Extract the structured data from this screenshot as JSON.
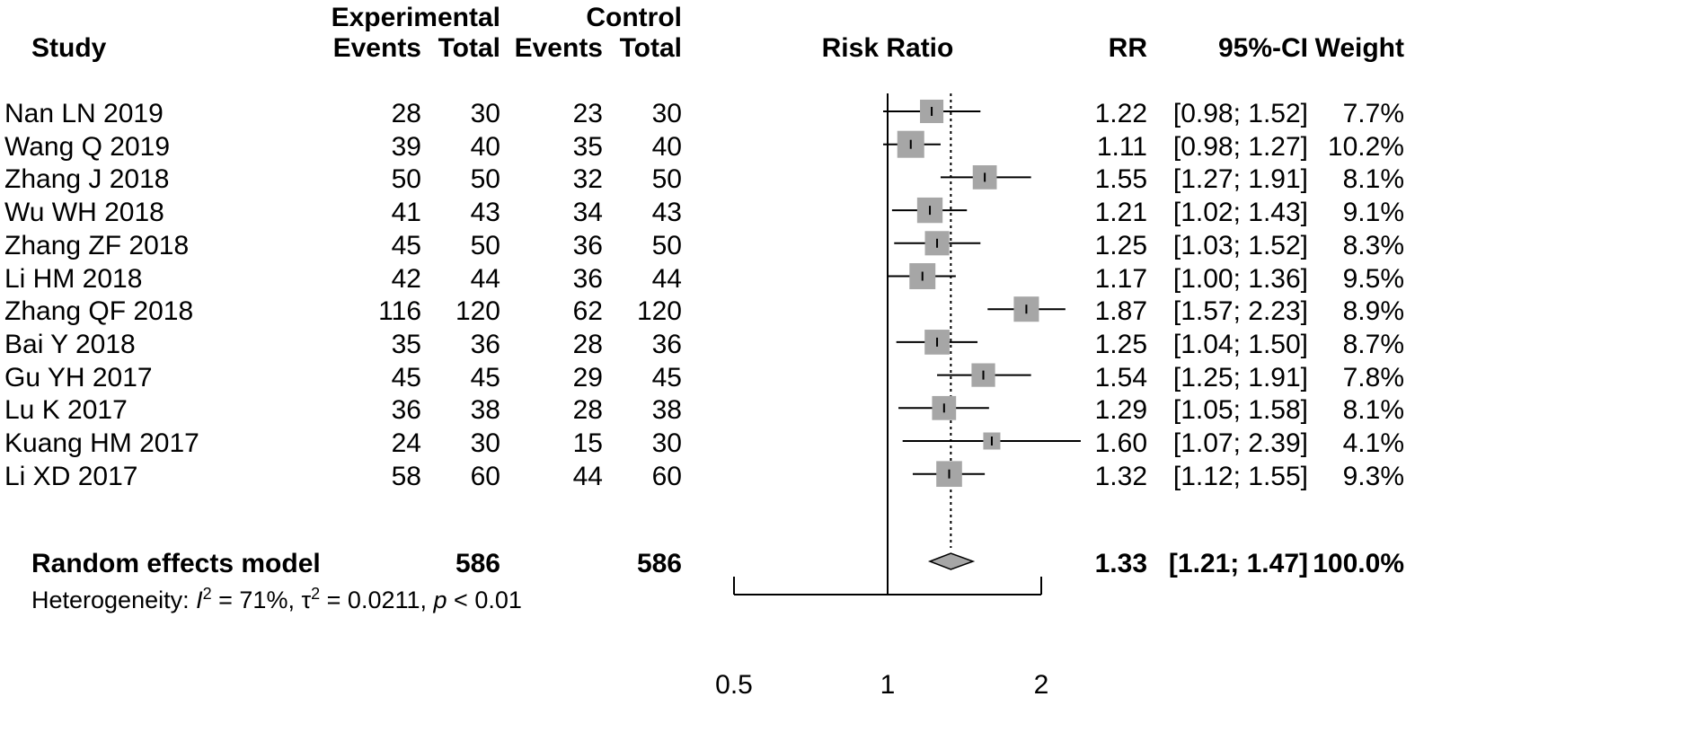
{
  "headers": {
    "study": "Study",
    "experimental": "Experimental",
    "control": "Control",
    "events": "Events",
    "total": "Total",
    "risk_ratio": "Risk Ratio",
    "rr": "RR",
    "ci": "95%-CI",
    "weight": "Weight"
  },
  "studies": [
    {
      "name": "Nan LN 2019",
      "exp_events": "28",
      "exp_total": "30",
      "ctl_events": "23",
      "ctl_total": "30",
      "rr": "1.22",
      "ci": "[0.98; 1.52]",
      "weight": "7.7%"
    },
    {
      "name": "Wang Q 2019",
      "exp_events": "39",
      "exp_total": "40",
      "ctl_events": "35",
      "ctl_total": "40",
      "rr": "1.11",
      "ci": "[0.98; 1.27]",
      "weight": "10.2%"
    },
    {
      "name": "Zhang J 2018",
      "exp_events": "50",
      "exp_total": "50",
      "ctl_events": "32",
      "ctl_total": "50",
      "rr": "1.55",
      "ci": "[1.27; 1.91]",
      "weight": "8.1%"
    },
    {
      "name": "Wu WH 2018",
      "exp_events": "41",
      "exp_total": "43",
      "ctl_events": "34",
      "ctl_total": "43",
      "rr": "1.21",
      "ci": "[1.02; 1.43]",
      "weight": "9.1%"
    },
    {
      "name": "Zhang ZF 2018",
      "exp_events": "45",
      "exp_total": "50",
      "ctl_events": "36",
      "ctl_total": "50",
      "rr": "1.25",
      "ci": "[1.03; 1.52]",
      "weight": "8.3%"
    },
    {
      "name": "Li HM 2018",
      "exp_events": "42",
      "exp_total": "44",
      "ctl_events": "36",
      "ctl_total": "44",
      "rr": "1.17",
      "ci": "[1.00; 1.36]",
      "weight": "9.5%"
    },
    {
      "name": "Zhang QF 2018",
      "exp_events": "116",
      "exp_total": "120",
      "ctl_events": "62",
      "ctl_total": "120",
      "rr": "1.87",
      "ci": "[1.57; 2.23]",
      "weight": "8.9%"
    },
    {
      "name": "Bai Y 2018",
      "exp_events": "35",
      "exp_total": "36",
      "ctl_events": "28",
      "ctl_total": "36",
      "rr": "1.25",
      "ci": "[1.04; 1.50]",
      "weight": "8.7%"
    },
    {
      "name": "Gu YH 2017",
      "exp_events": "45",
      "exp_total": "45",
      "ctl_events": "29",
      "ctl_total": "45",
      "rr": "1.54",
      "ci": "[1.25; 1.91]",
      "weight": "7.8%"
    },
    {
      "name": "Lu K 2017",
      "exp_events": "36",
      "exp_total": "38",
      "ctl_events": "28",
      "ctl_total": "38",
      "rr": "1.29",
      "ci": "[1.05; 1.58]",
      "weight": "8.1%"
    },
    {
      "name": "Kuang HM 2017",
      "exp_events": "24",
      "exp_total": "30",
      "ctl_events": "15",
      "ctl_total": "30",
      "rr": "1.60",
      "ci": "[1.07; 2.39]",
      "weight": "4.1%"
    },
    {
      "name": "Li XD 2017",
      "exp_events": "58",
      "exp_total": "60",
      "ctl_events": "44",
      "ctl_total": "60",
      "rr": "1.32",
      "ci": "[1.12; 1.55]",
      "weight": "9.3%"
    }
  ],
  "pooled": {
    "label": "Random effects model",
    "exp_total": "586",
    "ctl_total": "586",
    "rr": "1.33",
    "ci": "[1.21; 1.47]",
    "weight": "100.0%"
  },
  "heterogeneity": {
    "prefix": "Heterogeneity: ",
    "i_symbol": "I",
    "i_value": " = 71%, ",
    "tau_symbol": "τ",
    "tau_value": " = 0.0211, ",
    "p_symbol": "p",
    "p_value": " < 0.01",
    "superscript": "2"
  },
  "colors": {
    "box_fill": "#a6a6a6",
    "diamond_fill": "#a6a6a6",
    "line": "#000000"
  },
  "chart_data": {
    "type": "forest",
    "scale": "log",
    "x_ticks": [
      0.5,
      1,
      2
    ],
    "x_tick_labels": [
      "0.5",
      "1",
      "2"
    ],
    "xlim": [
      0.5,
      2
    ],
    "reference_line": 1,
    "pooled_line": 1.33,
    "points": [
      {
        "label": "Nan LN 2019",
        "rr": 1.22,
        "lower": 0.98,
        "upper": 1.52,
        "weight": 7.7
      },
      {
        "label": "Wang Q 2019",
        "rr": 1.11,
        "lower": 0.98,
        "upper": 1.27,
        "weight": 10.2
      },
      {
        "label": "Zhang J 2018",
        "rr": 1.55,
        "lower": 1.27,
        "upper": 1.91,
        "weight": 8.1
      },
      {
        "label": "Wu WH 2018",
        "rr": 1.21,
        "lower": 1.02,
        "upper": 1.43,
        "weight": 9.1
      },
      {
        "label": "Zhang ZF 2018",
        "rr": 1.25,
        "lower": 1.03,
        "upper": 1.52,
        "weight": 8.3
      },
      {
        "label": "Li HM 2018",
        "rr": 1.17,
        "lower": 1.0,
        "upper": 1.36,
        "weight": 9.5
      },
      {
        "label": "Zhang QF 2018",
        "rr": 1.87,
        "lower": 1.57,
        "upper": 2.23,
        "weight": 8.9
      },
      {
        "label": "Bai Y 2018",
        "rr": 1.25,
        "lower": 1.04,
        "upper": 1.5,
        "weight": 8.7
      },
      {
        "label": "Gu YH 2017",
        "rr": 1.54,
        "lower": 1.25,
        "upper": 1.91,
        "weight": 7.8
      },
      {
        "label": "Lu K 2017",
        "rr": 1.29,
        "lower": 1.05,
        "upper": 1.58,
        "weight": 8.1
      },
      {
        "label": "Kuang HM 2017",
        "rr": 1.6,
        "lower": 1.07,
        "upper": 2.39,
        "weight": 4.1
      },
      {
        "label": "Li XD 2017",
        "rr": 1.32,
        "lower": 1.12,
        "upper": 1.55,
        "weight": 9.3
      }
    ],
    "pooled": {
      "label": "Random effects model",
      "rr": 1.33,
      "lower": 1.21,
      "upper": 1.47,
      "weight": 100.0
    }
  }
}
